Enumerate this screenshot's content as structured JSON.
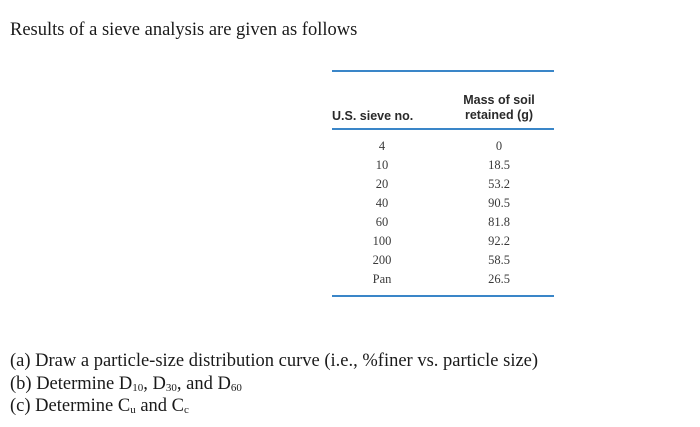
{
  "intro": "Results of a sieve analysis are given as follows",
  "table": {
    "header_sieve": "U.S. sieve no.",
    "header_mass_line1": "Mass of soil",
    "header_mass_line2": "retained (g)",
    "rows": [
      {
        "sieve": "4",
        "mass": "0"
      },
      {
        "sieve": "10",
        "mass": "18.5"
      },
      {
        "sieve": "20",
        "mass": "53.2"
      },
      {
        "sieve": "40",
        "mass": "90.5"
      },
      {
        "sieve": "60",
        "mass": "81.8"
      },
      {
        "sieve": "100",
        "mass": "92.2"
      },
      {
        "sieve": "200",
        "mass": "58.5"
      },
      {
        "sieve": "Pan",
        "mass": "26.5"
      }
    ]
  },
  "questions": {
    "a": "(a) Draw a particle-size distribution curve (i.e., %finer vs. particle size)",
    "b_prefix": "(b) Determine D",
    "b_sub1": "10",
    "b_sep1": ", D",
    "b_sub2": "30",
    "b_sep2": ", and D",
    "b_sub3": "60",
    "c_prefix": "(c) Determine C",
    "c_sub1": "u",
    "c_sep": " and C",
    "c_sub2": "c"
  }
}
